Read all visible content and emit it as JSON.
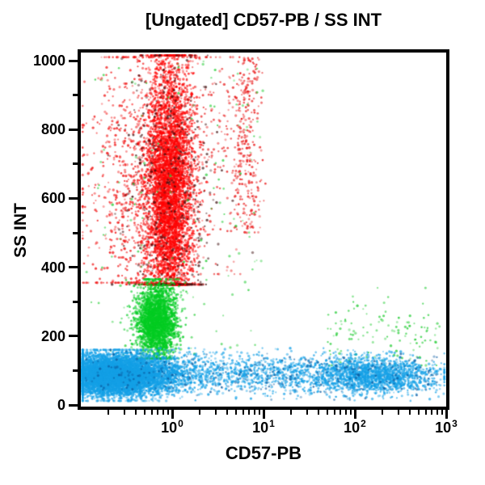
{
  "window": {
    "background": "#ffffff",
    "frame_color": "#000000"
  },
  "chart_data": {
    "type": "scatter",
    "title": "[Ungated] CD57-PB / SS INT",
    "xlabel": "CD57-PB",
    "ylabel": "SS INT",
    "x_scale": "log",
    "x_min_exp": -1,
    "x_max_exp": 3,
    "x_tick_base": "10",
    "x_major_tick_exponents": [
      0,
      1,
      2,
      3
    ],
    "y_scale": "linear",
    "ylim": [
      0,
      1000
    ],
    "y_major_ticks": [
      0,
      200,
      400,
      600,
      800,
      1000
    ],
    "y_minor_ticks": [
      100,
      300,
      500,
      700,
      900
    ],
    "grid": false,
    "legend": false,
    "point_colors": {
      "red": "#FF0000",
      "green": "#00CC22",
      "blue": "#14A0E6",
      "dark": "#401010",
      "dark_blue": "#0A5AA0"
    },
    "populations": [
      {
        "name": "granulocytes-red-core",
        "color": "#FF0000",
        "count": 5200,
        "x": {
          "dist": "lognormal",
          "mean_exp": -0.03,
          "sigma_exp": 0.13,
          "min_exp": -0.98,
          "max_exp": 0.55
        },
        "y": {
          "dist": "normal",
          "mean": 620,
          "sd": 190,
          "min": 350,
          "max": 1015
        }
      },
      {
        "name": "granulocytes-red-left-scatter",
        "color": "#F01010",
        "count": 900,
        "x": {
          "dist": "lognormal",
          "mean_exp": -0.38,
          "sigma_exp": 0.3,
          "min_exp": -0.98,
          "max_exp": 0.3
        },
        "y": {
          "dist": "normal",
          "mean": 640,
          "sd": 210,
          "min": 355,
          "max": 1010
        }
      },
      {
        "name": "red-doublet-streak",
        "color": "#E81010",
        "count": 280,
        "x": {
          "dist": "lognormal",
          "mean_exp": 0.82,
          "sigma_exp": 0.09,
          "min_exp": 0.5,
          "max_exp": 1.15
        },
        "y": {
          "dist": "uniform",
          "min": 500,
          "max": 1010
        }
      },
      {
        "name": "red-bridge-scatter",
        "color": "#E82020",
        "count": 220,
        "x": {
          "dist": "uniform",
          "min_exp": 0.1,
          "max_exp": 0.75
        },
        "y": {
          "dist": "normal",
          "mean": 720,
          "sd": 190,
          "min": 380,
          "max": 1010
        }
      },
      {
        "name": "dark-debris-specks",
        "color": "#401010",
        "count": 420,
        "x": {
          "dist": "lognormal",
          "mean_exp": -0.02,
          "sigma_exp": 0.24,
          "min_exp": -0.98,
          "max_exp": 1.1
        },
        "y": {
          "dist": "normal",
          "mean": 620,
          "sd": 230,
          "min": 350,
          "max": 1015
        }
      },
      {
        "name": "monocytes-green",
        "color": "#00CC22",
        "count": 2600,
        "x": {
          "dist": "lognormal",
          "mean_exp": -0.17,
          "sigma_exp": 0.11,
          "min_exp": -0.7,
          "max_exp": 0.3
        },
        "y": {
          "dist": "normal",
          "mean": 245,
          "sd": 55,
          "min": 135,
          "max": 365
        }
      },
      {
        "name": "green-sparse-scatter",
        "color": "#22CC33",
        "count": 150,
        "x": {
          "dist": "uniform",
          "min_exp": -0.95,
          "max_exp": 1.0
        },
        "y": {
          "dist": "uniform",
          "min": 140,
          "max": 1000
        }
      },
      {
        "name": "green-right-scatter",
        "color": "#22CC33",
        "count": 130,
        "x": {
          "dist": "uniform",
          "min_exp": 1.7,
          "max_exp": 2.98
        },
        "y": {
          "dist": "normal",
          "mean": 205,
          "sd": 60,
          "min": 115,
          "max": 340
        }
      },
      {
        "name": "lymphocytes-blue-main",
        "color": "#14A0E6",
        "count": 7500,
        "x": {
          "dist": "lognormal",
          "mean_exp": -0.62,
          "sigma_exp": 0.3,
          "min_exp": -0.98,
          "max_exp": 0.6
        },
        "y": {
          "dist": "normal",
          "mean": 88,
          "sd": 30,
          "min": 12,
          "max": 160
        }
      },
      {
        "name": "lymphocytes-blue-tail",
        "color": "#14A0E6",
        "count": 1700,
        "x": {
          "dist": "uniform",
          "min_exp": -0.5,
          "max_exp": 2.15
        },
        "y": {
          "dist": "normal",
          "mean": 92,
          "sd": 28,
          "min": 18,
          "max": 165
        }
      },
      {
        "name": "nk-cd57pos-blue-right",
        "color": "#14A0E6",
        "count": 1500,
        "x": {
          "dist": "lognormal",
          "mean_exp": 2.28,
          "sigma_exp": 0.32,
          "min_exp": 1.4,
          "max_exp": 2.98
        },
        "y": {
          "dist": "normal",
          "mean": 85,
          "sd": 26,
          "min": 12,
          "max": 155
        }
      },
      {
        "name": "blue-dark-specks",
        "color": "#0A5AA0",
        "count": 300,
        "x": {
          "dist": "uniform",
          "min_exp": -0.95,
          "max_exp": 2.9
        },
        "y": {
          "dist": "normal",
          "mean": 90,
          "sd": 32,
          "min": 15,
          "max": 160
        }
      }
    ]
  }
}
